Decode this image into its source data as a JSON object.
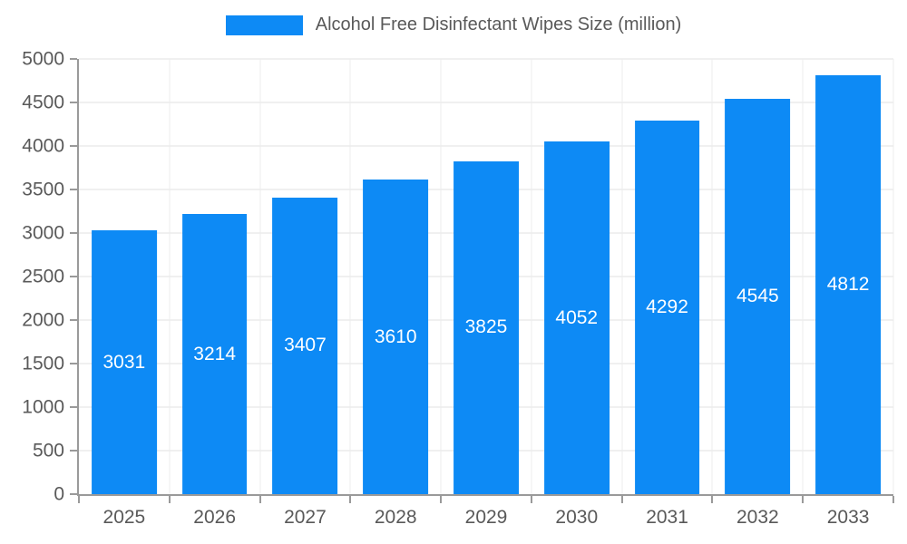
{
  "chart_data": {
    "type": "bar",
    "title": "Alcohol Free Disinfectant Wipes Size (million)",
    "categories": [
      "2025",
      "2026",
      "2027",
      "2028",
      "2029",
      "2030",
      "2031",
      "2032",
      "2033"
    ],
    "values": [
      3031,
      3214,
      3407,
      3610,
      3825,
      4052,
      4292,
      4545,
      4812
    ],
    "yticks": [
      0,
      500,
      1000,
      1500,
      2000,
      2500,
      3000,
      3500,
      4000,
      4500,
      5000
    ],
    "ylim": [
      0,
      5000
    ],
    "ytick_step": 500,
    "xlabel": "",
    "ylabel": "",
    "grid": true,
    "legend_position": "top",
    "bar_color": "#0d8af5",
    "bar_label_color": "#ffffff",
    "axis_text_color": "#595959",
    "grid_color": "#e2e2e2",
    "axis_line_color": "#9a9a9a",
    "bar_width_fraction": 0.72
  }
}
